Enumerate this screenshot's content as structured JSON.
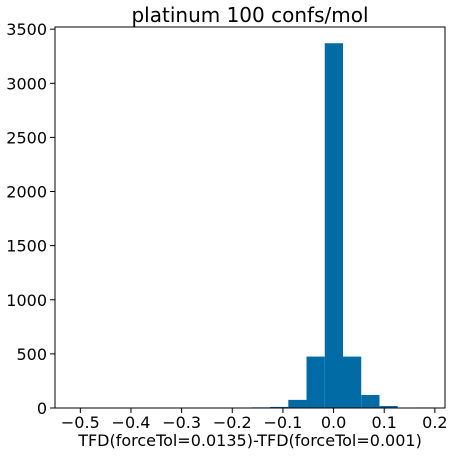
{
  "chart_data": {
    "type": "bar",
    "title": "platinum 100 confs/mol",
    "xlabel": "TFD(forceTol=0.0135)-TFD(forceTol=0.001)",
    "ylabel": "",
    "xlim": [
      -0.55,
      0.22
    ],
    "ylim": [
      0,
      3520
    ],
    "bar_color": "#006ba4",
    "xticks": [
      {
        "value": -0.5,
        "label": "−0.5"
      },
      {
        "value": -0.4,
        "label": "−0.4"
      },
      {
        "value": -0.3,
        "label": "−0.3"
      },
      {
        "value": -0.2,
        "label": "−0.2"
      },
      {
        "value": -0.1,
        "label": "−0.1"
      },
      {
        "value": 0.0,
        "label": "0.0"
      },
      {
        "value": 0.1,
        "label": "0.1"
      },
      {
        "value": 0.2,
        "label": "0.2"
      }
    ],
    "yticks": [
      {
        "value": 0,
        "label": "0"
      },
      {
        "value": 500,
        "label": "500"
      },
      {
        "value": 1000,
        "label": "1000"
      },
      {
        "value": 1500,
        "label": "1500"
      },
      {
        "value": 2000,
        "label": "2000"
      },
      {
        "value": 2500,
        "label": "2500"
      },
      {
        "value": 3000,
        "label": "3000"
      },
      {
        "value": 3500,
        "label": "3500"
      }
    ],
    "bins": [
      {
        "x0": -0.5214,
        "x1": -0.4854,
        "count": 1
      },
      {
        "x0": -0.4854,
        "x1": -0.4494,
        "count": 0
      },
      {
        "x0": -0.4494,
        "x1": -0.4134,
        "count": 0
      },
      {
        "x0": -0.4134,
        "x1": -0.3774,
        "count": 0
      },
      {
        "x0": -0.3774,
        "x1": -0.3414,
        "count": 0
      },
      {
        "x0": -0.3414,
        "x1": -0.3054,
        "count": 0
      },
      {
        "x0": -0.3054,
        "x1": -0.2694,
        "count": 0
      },
      {
        "x0": -0.2694,
        "x1": -0.2334,
        "count": 0
      },
      {
        "x0": -0.2334,
        "x1": -0.1974,
        "count": 1
      },
      {
        "x0": -0.1974,
        "x1": -0.1614,
        "count": 1
      },
      {
        "x0": -0.1614,
        "x1": -0.1254,
        "count": 6
      },
      {
        "x0": -0.1254,
        "x1": -0.0894,
        "count": 10
      },
      {
        "x0": -0.0894,
        "x1": -0.0534,
        "count": 75
      },
      {
        "x0": -0.0534,
        "x1": -0.0174,
        "count": 475
      },
      {
        "x0": -0.0174,
        "x1": 0.0186,
        "count": 3370
      },
      {
        "x0": 0.0186,
        "x1": 0.0546,
        "count": 475
      },
      {
        "x0": 0.0546,
        "x1": 0.0906,
        "count": 120
      },
      {
        "x0": 0.0906,
        "x1": 0.1266,
        "count": 18
      },
      {
        "x0": 0.1266,
        "x1": 0.1626,
        "count": 3
      },
      {
        "x0": 0.1626,
        "x1": 0.1986,
        "count": 5
      }
    ]
  }
}
